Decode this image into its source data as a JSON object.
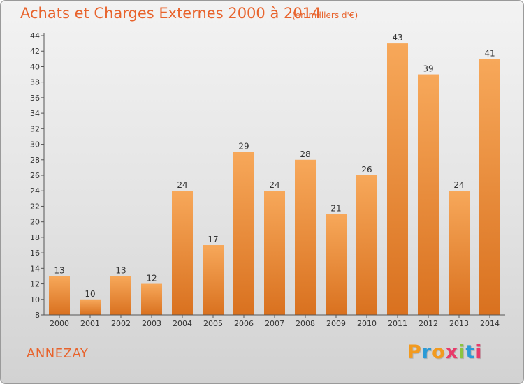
{
  "title": "Achats et Charges Externes 2000 à 2014",
  "subtitle": "(en milliers d'€)",
  "commune": "ANNEZAY",
  "logo": {
    "text": "Proxiti",
    "colors": [
      "#f29a1f",
      "#2a9ad6",
      "#f29a1f",
      "#e83a6a",
      "#8cc43f",
      "#2a9ad6",
      "#e83a6a"
    ]
  },
  "colors": {
    "bar_light": "#f7a85a",
    "bar_dark": "#d9711f",
    "axis": "#555555",
    "accent": "#e8632c"
  },
  "chart_data": {
    "type": "bar",
    "categories": [
      "2000",
      "2001",
      "2002",
      "2003",
      "2004",
      "2005",
      "2006",
      "2007",
      "2008",
      "2009",
      "2010",
      "2011",
      "2012",
      "2013",
      "2014"
    ],
    "values": [
      13,
      10,
      13,
      12,
      24,
      17,
      29,
      24,
      28,
      21,
      26,
      43,
      39,
      24,
      41
    ],
    "ylim": [
      8,
      44
    ],
    "yticks": [
      8,
      10,
      12,
      14,
      16,
      18,
      20,
      22,
      24,
      26,
      28,
      30,
      32,
      34,
      36,
      38,
      40,
      42,
      44
    ],
    "grid": false,
    "legend": "none"
  }
}
